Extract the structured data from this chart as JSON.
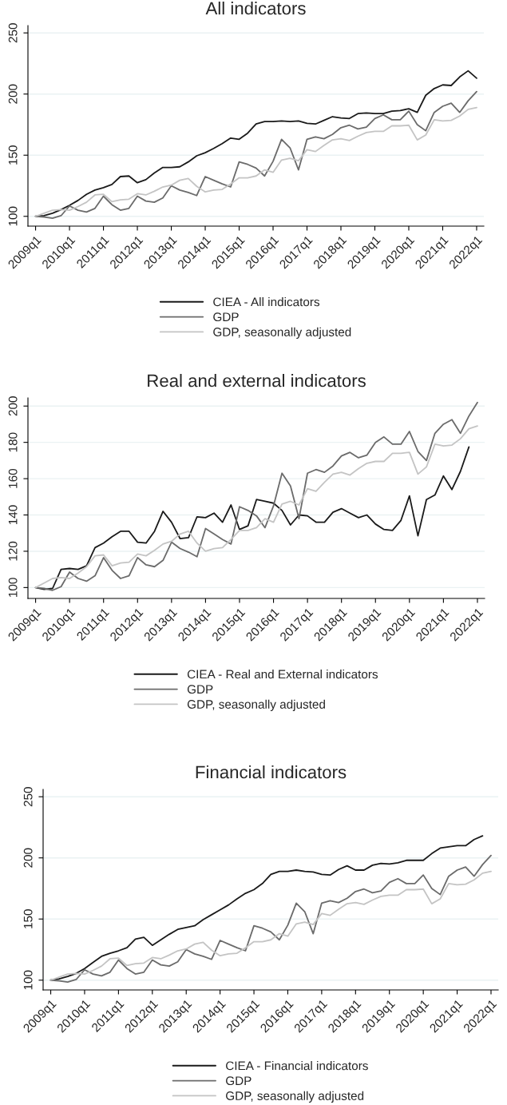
{
  "chart_data": [
    {
      "type": "line",
      "title": "All indicators",
      "categories": [
        "2009q1",
        null,
        null,
        null,
        "2010q1",
        null,
        null,
        null,
        "2011q1",
        null,
        null,
        null,
        "2012q1",
        null,
        null,
        null,
        "2013q1",
        null,
        null,
        null,
        "2014q1",
        null,
        null,
        null,
        "2015q1",
        null,
        null,
        null,
        "2016q1",
        null,
        null,
        null,
        "2017q1",
        null,
        null,
        null,
        "2018q1",
        null,
        null,
        null,
        "2019q1",
        null,
        null,
        null,
        "2020q1",
        null,
        null,
        null,
        "2021q1",
        null,
        null,
        null,
        "2022q1"
      ],
      "series": [
        {
          "name": "CIEA - All indicators",
          "color": "#1a1a1a",
          "values": [
            100,
            100.5,
            102.5,
            105.5,
            109,
            113,
            118,
            121.5,
            123.5,
            126,
            132.5,
            133,
            127.5,
            130,
            135.5,
            140,
            140,
            140.5,
            144.5,
            149.5,
            152,
            155.5,
            159.5,
            164,
            163,
            168,
            175.5,
            177.5,
            177.5,
            178,
            177.5,
            178,
            176,
            175.5,
            178.5,
            181.5,
            180.5,
            180,
            184,
            184.5,
            184,
            184,
            186,
            186.5,
            188,
            185,
            199,
            204.5,
            207.5,
            207,
            214,
            219,
            213
          ]
        },
        {
          "name": "GDP",
          "color": "#6b6b6b",
          "values": [
            100,
            99.5,
            98.5,
            100.5,
            108.5,
            105,
            103.5,
            106.5,
            116.5,
            109.5,
            105,
            106.5,
            116.5,
            112.5,
            111.5,
            115,
            125,
            121.5,
            119.5,
            117,
            132.5,
            129.5,
            126.5,
            124,
            144.5,
            142.5,
            139.5,
            133,
            145,
            163,
            156,
            138,
            163,
            165,
            163.5,
            167,
            172.5,
            174.5,
            171.5,
            173,
            180,
            183,
            179,
            179,
            186,
            175,
            170,
            185,
            190,
            192.5,
            185,
            194.5,
            202
          ]
        },
        {
          "name": "GDP, seasonally adjusted",
          "color": "#c4c4c4",
          "values": [
            100,
            102.5,
            105,
            105.5,
            105,
            108,
            111.5,
            117.5,
            118,
            112,
            113.5,
            114,
            118.5,
            117.5,
            120.5,
            124,
            125.5,
            129.5,
            131,
            124.5,
            120,
            121.5,
            122,
            126.5,
            131.5,
            131.5,
            133,
            138,
            136,
            146,
            147.5,
            145.5,
            154.5,
            153,
            158,
            162.5,
            163.5,
            162,
            165.5,
            168.5,
            169.5,
            169.5,
            174,
            174,
            174.5,
            162.5,
            166.5,
            179,
            178,
            178.5,
            182,
            187.5,
            189
          ]
        }
      ],
      "ylim": [
        92,
        256
      ],
      "yticks": [
        100,
        150,
        200,
        250
      ],
      "grid": "y",
      "legend": "bottom"
    },
    {
      "type": "line",
      "title": "Real and external indicators",
      "categories": [
        "2009q1",
        null,
        null,
        null,
        "2010q1",
        null,
        null,
        null,
        "2011q1",
        null,
        null,
        null,
        "2012q1",
        null,
        null,
        null,
        "2013q1",
        null,
        null,
        null,
        "2014q1",
        null,
        null,
        null,
        "2015q1",
        null,
        null,
        null,
        "2016q1",
        null,
        null,
        null,
        "2017q1",
        null,
        null,
        null,
        "2018q1",
        null,
        null,
        null,
        "2019q1",
        null,
        null,
        null,
        "2020q1",
        null,
        null,
        null,
        "2021q1",
        null,
        null,
        null,
        "2022q1"
      ],
      "series": [
        {
          "name": "CIEA - Real and External indicators",
          "color": "#1a1a1a",
          "values": [
            100,
            99,
            99.5,
            110,
            110.5,
            110,
            112,
            122,
            124.5,
            128,
            131,
            131,
            125,
            124.5,
            131,
            142,
            136,
            127,
            127.5,
            139,
            138.5,
            141,
            136,
            145.5,
            132,
            134,
            148.5,
            147.5,
            146.5,
            142.5,
            134.5,
            140,
            139.5,
            136,
            136,
            141.5,
            143.5,
            141,
            138.5,
            140,
            135,
            132,
            131.5,
            137,
            150.5,
            128.5,
            148.5,
            151,
            161.5,
            154,
            164,
            177.5,
            null
          ]
        },
        {
          "name": "GDP",
          "color": "#6b6b6b",
          "values": [
            100,
            99.5,
            98.5,
            100.5,
            108.5,
            105,
            103.5,
            106.5,
            116.5,
            109.5,
            105,
            106.5,
            116.5,
            112.5,
            111.5,
            115,
            125,
            121.5,
            119.5,
            117,
            132.5,
            129.5,
            126.5,
            124,
            144.5,
            142.5,
            139.5,
            133,
            145,
            163,
            156,
            138,
            163,
            165,
            163.5,
            167,
            172.5,
            174.5,
            171.5,
            173,
            180,
            183,
            179,
            179,
            186,
            175,
            170,
            185,
            190,
            192.5,
            185,
            194.5,
            202
          ]
        },
        {
          "name": "GDP, seasonally adjusted",
          "color": "#c4c4c4",
          "values": [
            100,
            102.5,
            105,
            105.5,
            105,
            108,
            111.5,
            117.5,
            118,
            112,
            113.5,
            114,
            118.5,
            117.5,
            120.5,
            124,
            125.5,
            129.5,
            131,
            124.5,
            120,
            121.5,
            122,
            126.5,
            131.5,
            131.5,
            133,
            138,
            136,
            146,
            147.5,
            145.5,
            154.5,
            153,
            158,
            162.5,
            163.5,
            162,
            165.5,
            168.5,
            169.5,
            169.5,
            174,
            174,
            174.5,
            162.5,
            166.5,
            179,
            178,
            178.5,
            182,
            187.5,
            189
          ]
        }
      ],
      "ylim": [
        94,
        204.5
      ],
      "yticks": [
        100,
        120,
        140,
        160,
        180,
        200
      ],
      "grid": "y",
      "legend": "bottom"
    },
    {
      "type": "line",
      "title": "Financial indicators",
      "categories": [
        "2009q1",
        null,
        null,
        null,
        "2010q1",
        null,
        null,
        null,
        "2011q1",
        null,
        null,
        null,
        "2012q1",
        null,
        null,
        null,
        "2013q1",
        null,
        null,
        null,
        "2014q1",
        null,
        null,
        null,
        "2015q1",
        null,
        null,
        null,
        "2016q1",
        null,
        null,
        null,
        "2017q1",
        null,
        null,
        null,
        "2018q1",
        null,
        null,
        null,
        "2019q1",
        null,
        null,
        null,
        "2020q1",
        null,
        null,
        null,
        "2021q1",
        null,
        null,
        null,
        "2022q1"
      ],
      "series": [
        {
          "name": "CIEA - Financial indicators",
          "color": "#1a1a1a",
          "values": [
            100,
            101,
            103,
            105.5,
            109.5,
            114.5,
            119.5,
            122,
            124,
            126.5,
            133.5,
            135,
            128.5,
            133,
            137.5,
            141.5,
            143,
            144.5,
            149.5,
            153.5,
            157.5,
            161.5,
            166.5,
            171,
            174,
            179,
            186.5,
            189,
            189,
            190,
            189,
            188.5,
            186.5,
            186,
            190.5,
            193.5,
            190,
            190,
            194,
            195.5,
            195,
            196,
            198,
            198,
            198,
            203.5,
            208,
            209,
            210,
            210,
            215,
            218,
            null
          ]
        },
        {
          "name": "GDP",
          "color": "#6b6b6b",
          "values": [
            100,
            99.5,
            98.5,
            100.5,
            108.5,
            105,
            103.5,
            106.5,
            116.5,
            109.5,
            105,
            106.5,
            116.5,
            112.5,
            111.5,
            115,
            125,
            121.5,
            119.5,
            117,
            132.5,
            129.5,
            126.5,
            124,
            144.5,
            142.5,
            139.5,
            133,
            145,
            163,
            156,
            138,
            163,
            165,
            163.5,
            167,
            172.5,
            174.5,
            171.5,
            173,
            180,
            183,
            179,
            179,
            186,
            175,
            170,
            185,
            190,
            192.5,
            185,
            194.5,
            202
          ]
        },
        {
          "name": "GDP, seasonally adjusted",
          "color": "#c4c4c4",
          "values": [
            100,
            102.5,
            105,
            105.5,
            105,
            108,
            111.5,
            117.5,
            118,
            112,
            113.5,
            114,
            118.5,
            117.5,
            120.5,
            124,
            125.5,
            129.5,
            131,
            124.5,
            120,
            121.5,
            122,
            126.5,
            131.5,
            131.5,
            133,
            138,
            136,
            146,
            147.5,
            145.5,
            154.5,
            153,
            158,
            162.5,
            163.5,
            162,
            165.5,
            168.5,
            169.5,
            169.5,
            174,
            174,
            174.5,
            162.5,
            166.5,
            179,
            178,
            178.5,
            182,
            187.5,
            189
          ]
        }
      ],
      "ylim": [
        92,
        256
      ],
      "yticks": [
        100,
        150,
        200,
        250
      ],
      "grid": "y",
      "legend": "bottom"
    }
  ]
}
